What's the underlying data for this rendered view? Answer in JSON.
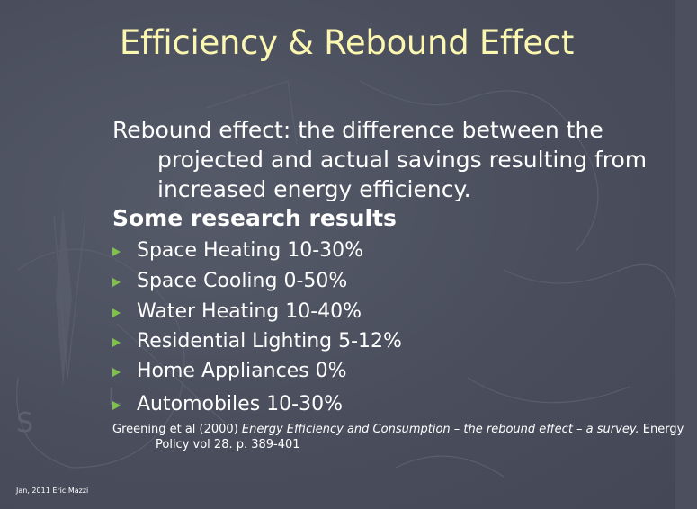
{
  "slide": {
    "title": "Efficiency & Rebound Effect",
    "definition": "Rebound effect: the difference between the projected and actual savings resulting from increased energy efficiency.",
    "subheading": "Some research results",
    "bullets": [
      "Space Heating 10-30%",
      "Space Cooling 0-50%",
      "Water Heating 10-40%",
      "Residential Lighting 5-12%",
      "Home Appliances  0%",
      "Automobiles 10-30%"
    ],
    "citation": {
      "authors": "Greening et al (2000) ",
      "title": "Energy Efficiency and Consumption – the rebound effect – a survey.",
      "source": " Energy Policy vol 28. p. 389-401"
    },
    "footer": "Jan, 2011 Eric Mazzi"
  },
  "colors": {
    "background": "#4b4f5e",
    "title": "#fbf6b0",
    "text": "#ffffff",
    "bullet_arrow": "#7fc24a"
  },
  "icons": {
    "bullet": "arrowhead-bullet-icon",
    "background_decoration": "compass-rose-icon"
  }
}
